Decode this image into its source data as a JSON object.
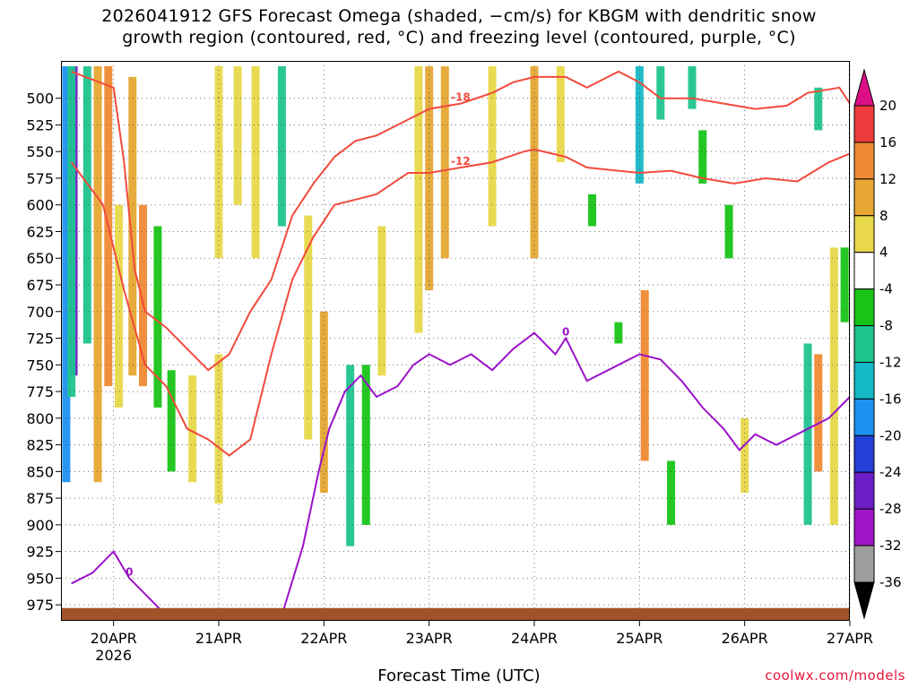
{
  "title_line1": "2026041912 GFS Forecast Omega (shaded, −cm/s) for KBGM with dendritic snow",
  "title_line2": "growth region (contoured, red, °C) and freezing level (contoured, purple, °C)",
  "credit": "coolwx.com/models",
  "colors": {
    "dendritic_contour": "#f24a3c",
    "freezing_contour": "#9b12c8",
    "terrain": "#a05229",
    "grid": "#555555"
  },
  "chart_data": {
    "type": "heatmap",
    "xlabel": "Forecast Time (UTC)",
    "ylabel": "",
    "x_ticks": [
      {
        "label": "20APR",
        "sublabel": "2026",
        "day": 20
      },
      {
        "label": "21APR",
        "day": 21
      },
      {
        "label": "22APR",
        "day": 22
      },
      {
        "label": "23APR",
        "day": 23
      },
      {
        "label": "24APR",
        "day": 24
      },
      {
        "label": "25APR",
        "day": 25
      },
      {
        "label": "26APR",
        "day": 26
      },
      {
        "label": "27APR",
        "day": 27
      }
    ],
    "xlim_days": [
      19.5,
      27.0
    ],
    "y_ticks": [
      500,
      525,
      550,
      575,
      600,
      625,
      650,
      675,
      700,
      725,
      750,
      775,
      800,
      825,
      850,
      875,
      900,
      925,
      950,
      975
    ],
    "ylim_hpa": [
      465,
      990
    ],
    "colorbar": {
      "labels": [
        "20",
        "16",
        "12",
        "8",
        "4",
        "-4",
        "-8",
        "-12",
        "-16",
        "-20",
        "-24",
        "-28",
        "-32",
        "-36"
      ],
      "colors": [
        "#dd0f86",
        "#ef3b3b",
        "#f08a32",
        "#e6a832",
        "#e8d84a",
        "#ffffff",
        "#19c417",
        "#1fc48f",
        "#16b9c6",
        "#1e90f0",
        "#2340d8",
        "#6e1ec8",
        "#a116c8",
        "#9e9e9e",
        "#000000"
      ]
    },
    "omega_cells": [
      {
        "day": 19.55,
        "p1": 470,
        "p2": 860,
        "level": -16
      },
      {
        "day": 19.62,
        "p1": 470,
        "p2": 760,
        "level": -24
      },
      {
        "day": 19.6,
        "p1": 470,
        "p2": 780,
        "level": -8
      },
      {
        "day": 19.75,
        "p1": 470,
        "p2": 730,
        "level": -8
      },
      {
        "day": 19.85,
        "p1": 470,
        "p2": 860,
        "level": 6
      },
      {
        "day": 19.95,
        "p1": 470,
        "p2": 770,
        "level": 12
      },
      {
        "day": 20.05,
        "p1": 600,
        "p2": 790,
        "level": 4
      },
      {
        "day": 20.18,
        "p1": 480,
        "p2": 760,
        "level": 6
      },
      {
        "day": 20.28,
        "p1": 600,
        "p2": 770,
        "level": 10
      },
      {
        "day": 20.42,
        "p1": 620,
        "p2": 790,
        "level": -6
      },
      {
        "day": 20.55,
        "p1": 755,
        "p2": 850,
        "level": -6
      },
      {
        "day": 21.0,
        "p1": 470,
        "p2": 650,
        "level": 4
      },
      {
        "day": 21.18,
        "p1": 470,
        "p2": 600,
        "level": 4
      },
      {
        "day": 20.75,
        "p1": 760,
        "p2": 860,
        "level": 4
      },
      {
        "day": 21.0,
        "p1": 740,
        "p2": 880,
        "level": 5
      },
      {
        "day": 21.35,
        "p1": 470,
        "p2": 650,
        "level": 4
      },
      {
        "day": 21.6,
        "p1": 470,
        "p2": 620,
        "level": -8
      },
      {
        "day": 21.85,
        "p1": 610,
        "p2": 820,
        "level": 4
      },
      {
        "day": 22.0,
        "p1": 700,
        "p2": 870,
        "level": 6
      },
      {
        "day": 22.25,
        "p1": 750,
        "p2": 920,
        "level": -8
      },
      {
        "day": 22.4,
        "p1": 750,
        "p2": 900,
        "level": -6
      },
      {
        "day": 22.55,
        "p1": 620,
        "p2": 760,
        "level": 4
      },
      {
        "day": 23.0,
        "p1": 470,
        "p2": 680,
        "level": 8
      },
      {
        "day": 22.9,
        "p1": 470,
        "p2": 720,
        "level": 5
      },
      {
        "day": 23.15,
        "p1": 470,
        "p2": 650,
        "level": 6
      },
      {
        "day": 23.6,
        "p1": 470,
        "p2": 620,
        "level": 4
      },
      {
        "day": 24.0,
        "p1": 470,
        "p2": 650,
        "level": 6
      },
      {
        "day": 24.25,
        "p1": 470,
        "p2": 560,
        "level": 4
      },
      {
        "day": 24.55,
        "p1": 590,
        "p2": 620,
        "level": -6
      },
      {
        "day": 24.8,
        "p1": 710,
        "p2": 730,
        "level": -6
      },
      {
        "day": 25.0,
        "p1": 470,
        "p2": 580,
        "level": -14
      },
      {
        "day": 25.2,
        "p1": 470,
        "p2": 520,
        "level": -10
      },
      {
        "day": 25.05,
        "p1": 680,
        "p2": 840,
        "level": 10
      },
      {
        "day": 25.3,
        "p1": 840,
        "p2": 900,
        "level": -6
      },
      {
        "day": 25.5,
        "p1": 470,
        "p2": 510,
        "level": -8
      },
      {
        "day": 25.6,
        "p1": 530,
        "p2": 580,
        "level": -6
      },
      {
        "day": 25.85,
        "p1": 600,
        "p2": 650,
        "level": -6
      },
      {
        "day": 26.0,
        "p1": 800,
        "p2": 870,
        "level": 4
      },
      {
        "day": 26.7,
        "p1": 490,
        "p2": 530,
        "level": -8
      },
      {
        "day": 26.6,
        "p1": 730,
        "p2": 900,
        "level": -8
      },
      {
        "day": 26.7,
        "p1": 740,
        "p2": 850,
        "level": 10
      },
      {
        "day": 26.85,
        "p1": 640,
        "p2": 900,
        "level": 4
      },
      {
        "day": 26.95,
        "p1": 640,
        "p2": 710,
        "level": -6
      }
    ],
    "dendritic_contours": [
      {
        "label": "-18",
        "points": [
          [
            19.6,
            475
          ],
          [
            20.0,
            490
          ],
          [
            20.1,
            560
          ],
          [
            20.2,
            660
          ],
          [
            20.3,
            700
          ],
          [
            20.5,
            715
          ],
          [
            20.7,
            735
          ],
          [
            20.9,
            755
          ],
          [
            21.1,
            740
          ],
          [
            21.3,
            700
          ],
          [
            21.5,
            670
          ],
          [
            21.7,
            610
          ],
          [
            21.9,
            580
          ],
          [
            22.1,
            555
          ],
          [
            22.3,
            540
          ],
          [
            22.5,
            535
          ],
          [
            22.8,
            520
          ],
          [
            23.0,
            510
          ],
          [
            23.3,
            505
          ],
          [
            23.6,
            495
          ],
          [
            23.8,
            485
          ],
          [
            24.0,
            480
          ],
          [
            24.3,
            480
          ],
          [
            24.5,
            490
          ],
          [
            24.8,
            475
          ],
          [
            25.0,
            485
          ],
          [
            25.2,
            500
          ],
          [
            25.5,
            500
          ],
          [
            25.8,
            505
          ],
          [
            26.1,
            510
          ],
          [
            26.4,
            507
          ],
          [
            26.6,
            495
          ],
          [
            26.9,
            490
          ],
          [
            27.0,
            505
          ]
        ]
      },
      {
        "label": "-12",
        "points": [
          [
            19.6,
            560
          ],
          [
            19.9,
            600
          ],
          [
            20.1,
            680
          ],
          [
            20.3,
            750
          ],
          [
            20.5,
            770
          ],
          [
            20.7,
            810
          ],
          [
            20.9,
            820
          ],
          [
            21.1,
            835
          ],
          [
            21.3,
            820
          ],
          [
            21.5,
            740
          ],
          [
            21.7,
            670
          ],
          [
            21.9,
            630
          ],
          [
            22.1,
            600
          ],
          [
            22.3,
            595
          ],
          [
            22.5,
            590
          ],
          [
            22.8,
            570
          ],
          [
            23.0,
            570
          ],
          [
            23.3,
            565
          ],
          [
            23.6,
            560
          ],
          [
            23.9,
            550
          ],
          [
            24.0,
            548
          ],
          [
            24.3,
            555
          ],
          [
            24.5,
            565
          ],
          [
            24.8,
            568
          ],
          [
            25.0,
            570
          ],
          [
            25.3,
            568
          ],
          [
            25.6,
            575
          ],
          [
            25.9,
            580
          ],
          [
            26.2,
            575
          ],
          [
            26.5,
            578
          ],
          [
            26.8,
            560
          ],
          [
            27.0,
            552
          ]
        ]
      }
    ],
    "freezing_contours": [
      {
        "label": "0",
        "points": [
          [
            19.6,
            955
          ],
          [
            19.8,
            945
          ],
          [
            20.0,
            925
          ],
          [
            20.15,
            950
          ],
          [
            20.3,
            965
          ],
          [
            20.5,
            985
          ]
        ]
      },
      {
        "label": "0",
        "points": [
          [
            21.6,
            985
          ],
          [
            21.8,
            920
          ],
          [
            21.95,
            850
          ],
          [
            22.05,
            810
          ],
          [
            22.2,
            775
          ],
          [
            22.35,
            760
          ],
          [
            22.5,
            780
          ],
          [
            22.7,
            770
          ],
          [
            22.85,
            750
          ],
          [
            23.0,
            740
          ],
          [
            23.2,
            750
          ],
          [
            23.4,
            740
          ],
          [
            23.6,
            755
          ],
          [
            23.8,
            735
          ],
          [
            24.0,
            720
          ],
          [
            24.2,
            740
          ],
          [
            24.3,
            725
          ],
          [
            24.5,
            765
          ],
          [
            24.8,
            750
          ],
          [
            25.0,
            740
          ],
          [
            25.2,
            745
          ],
          [
            25.4,
            765
          ],
          [
            25.6,
            790
          ],
          [
            25.8,
            810
          ],
          [
            25.95,
            830
          ],
          [
            26.1,
            815
          ],
          [
            26.3,
            825
          ],
          [
            26.6,
            810
          ],
          [
            26.8,
            800
          ],
          [
            27.0,
            780
          ]
        ]
      }
    ]
  }
}
